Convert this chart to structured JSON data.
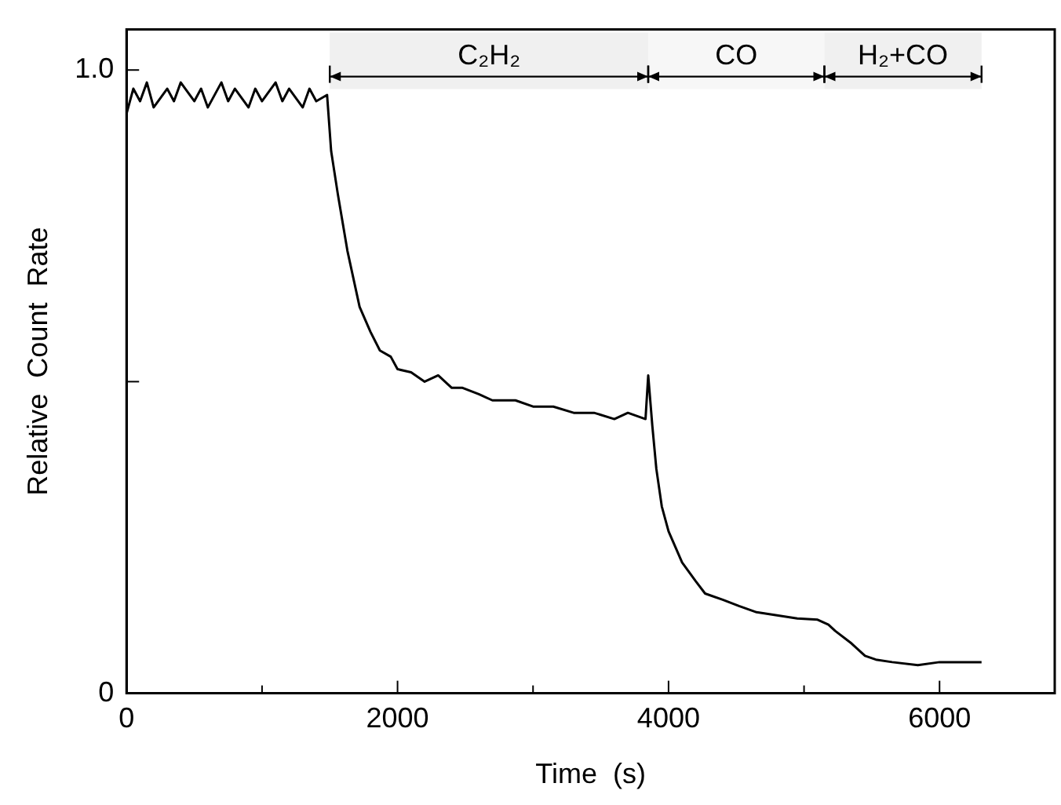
{
  "chart_data": {
    "type": "line",
    "xlabel": "Time  (s)",
    "ylabel": "Relative  Count  Rate",
    "xlim": [
      0,
      6850
    ],
    "ylim": [
      0,
      1.065
    ],
    "xticks": [
      0,
      {
        "value": 1000,
        "label": null
      },
      2000,
      {
        "value": 3000,
        "label": null
      },
      4000,
      {
        "value": 5000,
        "label": null
      },
      6000
    ],
    "yticks": [
      0,
      {
        "value": 0.5,
        "label": null
      },
      {
        "value": 1,
        "label": "1.0"
      }
    ],
    "grid": false,
    "legend": false,
    "marker": "none",
    "line_style": "solid",
    "bands": [
      {
        "axis": "x",
        "from": 1500,
        "to": 3850,
        "label": "C₂H₂",
        "color": "#f0f0f0"
      },
      {
        "axis": "x",
        "from": 3850,
        "to": 5150,
        "label": "CO",
        "color": "#f7f7f7"
      },
      {
        "axis": "x",
        "from": 5150,
        "to": 6310,
        "label": "H₂+CO",
        "color": "#f0f0f0"
      }
    ],
    "series": [
      {
        "color": "#000000",
        "x": [
          0,
          50,
          100,
          150,
          200,
          300,
          350,
          400,
          500,
          550,
          600,
          700,
          750,
          800,
          900,
          950,
          1000,
          1100,
          1150,
          1200,
          1300,
          1350,
          1400,
          1480,
          1510,
          1560,
          1630,
          1680,
          1720,
          1800,
          1870,
          1950,
          2000,
          2100,
          2200,
          2300,
          2400,
          2480,
          2600,
          2700,
          2870,
          3000,
          3150,
          3300,
          3450,
          3600,
          3700,
          3830,
          3850,
          3880,
          3910,
          3950,
          4000,
          4100,
          4200,
          4270,
          4400,
          4520,
          4650,
          4800,
          4950,
          5100,
          5180,
          5230,
          5350,
          5450,
          5530,
          5650,
          5840,
          6000,
          6150,
          6310
        ],
        "values": [
          0.93,
          0.97,
          0.95,
          0.98,
          0.94,
          0.97,
          0.95,
          0.98,
          0.95,
          0.97,
          0.94,
          0.98,
          0.95,
          0.97,
          0.94,
          0.97,
          0.95,
          0.98,
          0.95,
          0.97,
          0.94,
          0.97,
          0.95,
          0.96,
          0.87,
          0.8,
          0.71,
          0.66,
          0.62,
          0.58,
          0.55,
          0.54,
          0.52,
          0.515,
          0.5,
          0.51,
          0.49,
          0.49,
          0.48,
          0.47,
          0.47,
          0.46,
          0.46,
          0.45,
          0.45,
          0.44,
          0.45,
          0.44,
          0.51,
          0.43,
          0.36,
          0.3,
          0.26,
          0.21,
          0.18,
          0.16,
          0.15,
          0.14,
          0.13,
          0.125,
          0.12,
          0.118,
          0.11,
          0.1,
          0.08,
          0.06,
          0.054,
          0.05,
          0.045,
          0.05,
          0.05,
          0.05
        ]
      }
    ]
  }
}
